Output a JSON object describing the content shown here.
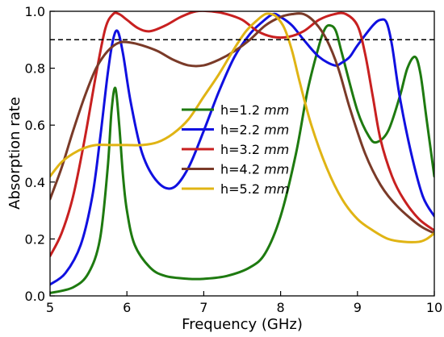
{
  "chart_data": {
    "type": "line",
    "title": "",
    "xlabel": "Frequency (GHz)",
    "ylabel": "Absorption rate",
    "xlim": [
      5,
      10
    ],
    "ylim": [
      0,
      1.0
    ],
    "xticks": [
      5,
      6,
      7,
      8,
      9,
      10
    ],
    "yticks": [
      0.0,
      0.2,
      0.4,
      0.6,
      0.8,
      1.0
    ],
    "xtick_labels": [
      "5",
      "6",
      "7",
      "8",
      "9",
      "10"
    ],
    "ytick_labels": [
      "0.0",
      "0.2",
      "0.4",
      "0.6",
      "0.8",
      "1.0"
    ],
    "grid": false,
    "legend_position": "center",
    "reference_line": {
      "y": 0.9,
      "style": "dashed",
      "color": "#000000"
    },
    "series": [
      {
        "name": "h=1.2",
        "unit": "mm",
        "color": "#1e7a10",
        "x": [
          5.0,
          5.3,
          5.5,
          5.65,
          5.75,
          5.8,
          5.85,
          5.9,
          5.95,
          6.0,
          6.1,
          6.3,
          6.5,
          6.8,
          7.0,
          7.3,
          7.6,
          7.8,
          8.0,
          8.2,
          8.35,
          8.5,
          8.58,
          8.65,
          8.72,
          8.8,
          9.0,
          9.15,
          9.25,
          9.4,
          9.55,
          9.65,
          9.75,
          9.82,
          9.9,
          10.0
        ],
        "y": [
          0.01,
          0.03,
          0.08,
          0.2,
          0.45,
          0.65,
          0.73,
          0.6,
          0.42,
          0.3,
          0.18,
          0.1,
          0.07,
          0.06,
          0.06,
          0.07,
          0.1,
          0.15,
          0.28,
          0.5,
          0.72,
          0.88,
          0.94,
          0.95,
          0.93,
          0.85,
          0.65,
          0.56,
          0.54,
          0.58,
          0.7,
          0.8,
          0.84,
          0.78,
          0.62,
          0.42
        ]
      },
      {
        "name": "h=2.2",
        "unit": "mm",
        "color": "#1010e0",
        "x": [
          5.0,
          5.2,
          5.4,
          5.55,
          5.65,
          5.75,
          5.82,
          5.88,
          5.95,
          6.05,
          6.2,
          6.4,
          6.6,
          6.8,
          7.0,
          7.2,
          7.4,
          7.6,
          7.75,
          7.9,
          8.0,
          8.15,
          8.3,
          8.5,
          8.7,
          8.8,
          8.9,
          9.0,
          9.2,
          9.3,
          9.38,
          9.45,
          9.55,
          9.7,
          9.85,
          10.0
        ],
        "y": [
          0.04,
          0.08,
          0.18,
          0.35,
          0.55,
          0.78,
          0.9,
          0.93,
          0.85,
          0.68,
          0.5,
          0.4,
          0.38,
          0.45,
          0.58,
          0.72,
          0.84,
          0.92,
          0.96,
          0.99,
          0.98,
          0.95,
          0.9,
          0.84,
          0.81,
          0.82,
          0.84,
          0.88,
          0.95,
          0.97,
          0.96,
          0.88,
          0.7,
          0.5,
          0.35,
          0.28
        ]
      },
      {
        "name": "h=3.2",
        "unit": "mm",
        "color": "#c82020",
        "x": [
          5.0,
          5.15,
          5.3,
          5.45,
          5.6,
          5.72,
          5.82,
          5.9,
          6.0,
          6.15,
          6.3,
          6.5,
          6.7,
          6.9,
          7.1,
          7.3,
          7.5,
          7.7,
          7.9,
          8.1,
          8.3,
          8.5,
          8.7,
          8.85,
          9.0,
          9.1,
          9.2,
          9.3,
          9.45,
          9.6,
          9.8,
          10.0
        ],
        "y": [
          0.14,
          0.22,
          0.35,
          0.55,
          0.78,
          0.94,
          0.99,
          0.99,
          0.97,
          0.94,
          0.93,
          0.95,
          0.98,
          1.0,
          1.0,
          0.99,
          0.97,
          0.93,
          0.91,
          0.91,
          0.93,
          0.97,
          0.99,
          0.99,
          0.95,
          0.85,
          0.7,
          0.55,
          0.42,
          0.34,
          0.27,
          0.23
        ]
      },
      {
        "name": "h=4.2",
        "unit": "mm",
        "color": "#7a3a28",
        "x": [
          5.0,
          5.15,
          5.3,
          5.45,
          5.6,
          5.75,
          5.9,
          6.05,
          6.2,
          6.4,
          6.6,
          6.8,
          7.0,
          7.2,
          7.4,
          7.6,
          7.8,
          8.0,
          8.15,
          8.3,
          8.45,
          8.6,
          8.75,
          8.9,
          9.1,
          9.3,
          9.5,
          9.7,
          9.85,
          10.0
        ],
        "y": [
          0.34,
          0.45,
          0.58,
          0.7,
          0.8,
          0.86,
          0.89,
          0.89,
          0.88,
          0.86,
          0.83,
          0.81,
          0.81,
          0.83,
          0.86,
          0.9,
          0.95,
          0.98,
          0.99,
          0.99,
          0.96,
          0.9,
          0.8,
          0.66,
          0.5,
          0.39,
          0.32,
          0.27,
          0.24,
          0.22
        ]
      },
      {
        "name": "h=5.2",
        "unit": "mm",
        "color": "#e0b414",
        "x": [
          5.0,
          5.15,
          5.3,
          5.45,
          5.6,
          5.8,
          6.0,
          6.2,
          6.4,
          6.6,
          6.8,
          7.0,
          7.2,
          7.4,
          7.55,
          7.7,
          7.8,
          7.88,
          7.95,
          8.05,
          8.15,
          8.25,
          8.4,
          8.6,
          8.8,
          9.0,
          9.2,
          9.4,
          9.6,
          9.8,
          9.9,
          10.0
        ],
        "y": [
          0.42,
          0.47,
          0.5,
          0.52,
          0.53,
          0.53,
          0.53,
          0.53,
          0.54,
          0.57,
          0.62,
          0.7,
          0.78,
          0.87,
          0.93,
          0.97,
          0.99,
          0.99,
          0.98,
          0.94,
          0.86,
          0.75,
          0.6,
          0.45,
          0.34,
          0.27,
          0.23,
          0.2,
          0.19,
          0.19,
          0.2,
          0.22
        ]
      }
    ]
  }
}
